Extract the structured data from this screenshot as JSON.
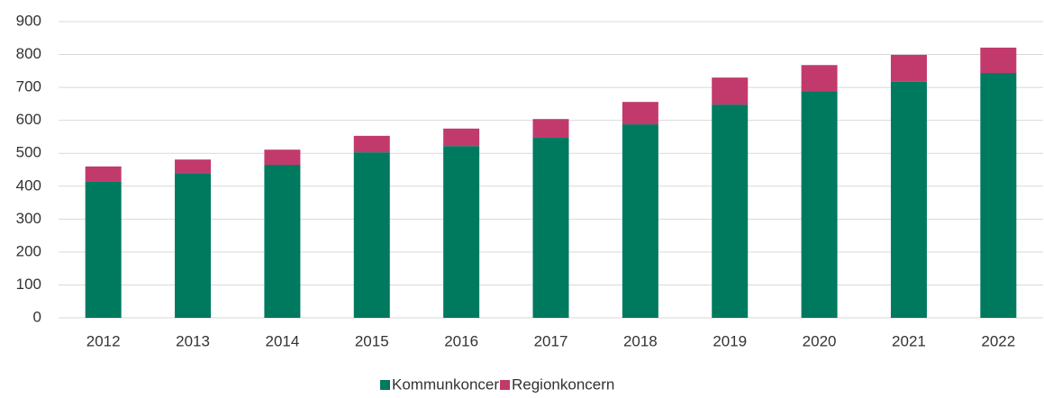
{
  "chart_data": {
    "type": "stacked_bar",
    "categories": [
      "2012",
      "2013",
      "2014",
      "2015",
      "2016",
      "2017",
      "2018",
      "2019",
      "2020",
      "2021",
      "2022"
    ],
    "series": [
      {
        "name": "Kommunkoncern",
        "color": "#007a5f",
        "values": [
          415,
          440,
          465,
          503,
          522,
          547,
          588,
          648,
          689,
          717,
          744
        ]
      },
      {
        "name": "Regionkoncern",
        "color": "#c23a6c",
        "values": [
          45,
          41,
          46,
          50,
          53,
          57,
          68,
          82,
          79,
          82,
          77
        ]
      }
    ],
    "ylim": [
      0,
      900
    ],
    "yticks": [
      0,
      100,
      200,
      300,
      400,
      500,
      600,
      700,
      800,
      900
    ],
    "grid": true,
    "legend": "bottom"
  }
}
